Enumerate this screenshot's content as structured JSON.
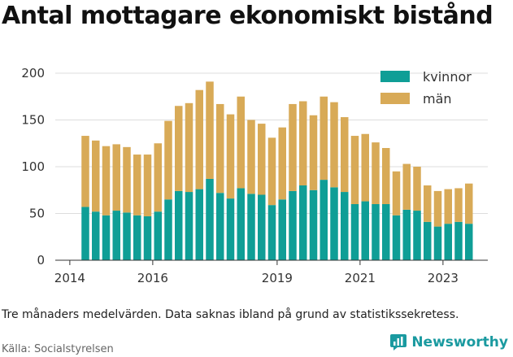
{
  "title": "Antal mottagare ekonomiskt bistånd",
  "note": "Tre månaders medelvärden. Data saknas ibland på grund av statistikssekretess.",
  "source": "Källa: Socialstyrelsen",
  "brand": {
    "name": "Newsworthy",
    "icon": "newsworthy-logo-icon",
    "color": "#1a9aa0"
  },
  "colors": {
    "kvinnor": "#0f9e96",
    "man": "#d8aa57"
  },
  "chart_data": {
    "type": "bar",
    "stacked": true,
    "ylim": [
      0,
      200
    ],
    "yticks": [
      0,
      50,
      100,
      150,
      200
    ],
    "xticks": [
      "2014",
      "2016",
      "2019",
      "2021",
      "2023"
    ],
    "grid": true,
    "legend_position": "top-right",
    "x": [
      "2014-Q2",
      "2014-Q3",
      "2014-Q4",
      "2015-Q1",
      "2015-Q2",
      "2015-Q3",
      "2015-Q4",
      "2016-Q1",
      "2016-Q2",
      "2016-Q3",
      "2016-Q4",
      "2017-Q1",
      "2017-Q2",
      "2017-Q3",
      "2017-Q4",
      "2018-Q1",
      "2018-Q2",
      "2018-Q3",
      "2018-Q4",
      "2019-Q1",
      "2019-Q2",
      "2019-Q3",
      "2019-Q4",
      "2020-Q1",
      "2020-Q2",
      "2020-Q3",
      "2020-Q4",
      "2021-Q1",
      "2021-Q2",
      "2021-Q3",
      "2021-Q4",
      "2022-Q1",
      "2022-Q2",
      "2022-Q3",
      "2022-Q4",
      "2023-Q1",
      "2023-Q2",
      "2023-Q3"
    ],
    "series": [
      {
        "name": "kvinnor",
        "color": "#0f9e96",
        "values": [
          57,
          52,
          48,
          53,
          51,
          48,
          47,
          52,
          65,
          74,
          73,
          76,
          87,
          72,
          66,
          77,
          71,
          70,
          59,
          65,
          74,
          80,
          75,
          86,
          78,
          73,
          60,
          63,
          60,
          60,
          48,
          54,
          53,
          41,
          36,
          39,
          41,
          39
        ]
      },
      {
        "name": "män",
        "color": "#d8aa57",
        "values": [
          76,
          76,
          74,
          71,
          70,
          65,
          66,
          73,
          84,
          91,
          95,
          106,
          104,
          95,
          90,
          98,
          79,
          76,
          72,
          77,
          93,
          90,
          80,
          89,
          91,
          80,
          73,
          72,
          66,
          60,
          47,
          49,
          47,
          39,
          38,
          37,
          36,
          43
        ]
      }
    ]
  }
}
